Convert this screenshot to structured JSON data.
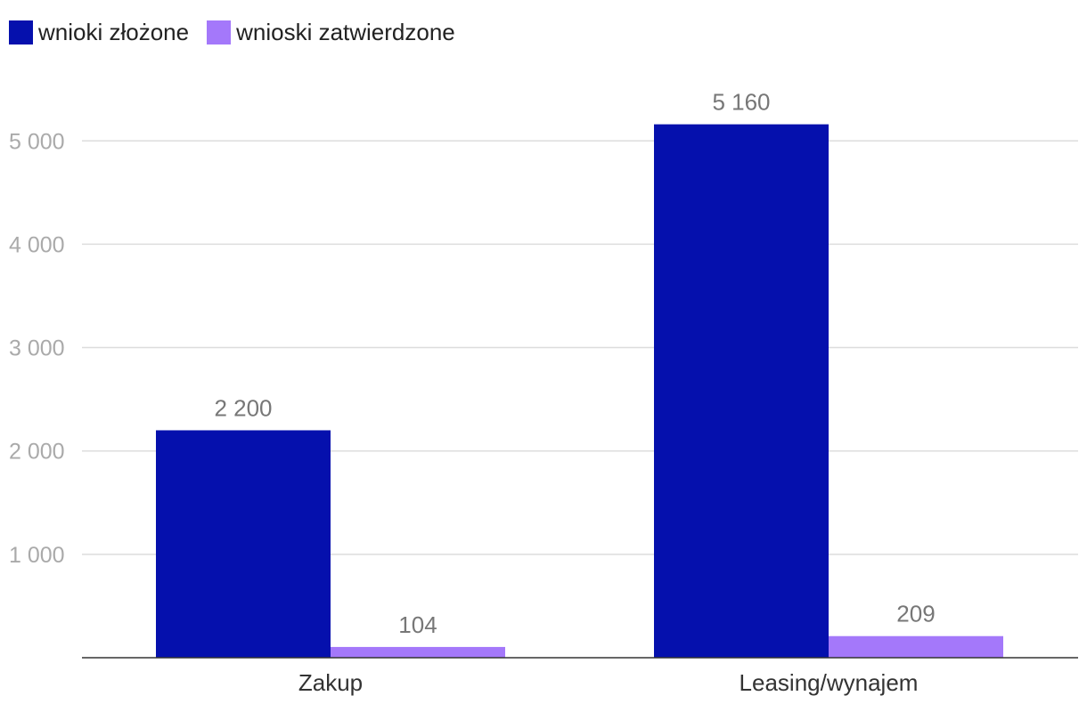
{
  "chart_data": {
    "type": "bar",
    "categories": [
      "Zakup",
      "Leasing/wynajem"
    ],
    "series": [
      {
        "name": "wnioki złożone",
        "color": "#0510AD",
        "values": [
          2200,
          5160
        ],
        "labels": [
          "2 200",
          "5 160"
        ]
      },
      {
        "name": "wnioski zatwierdzone",
        "color": "#A478FA",
        "values": [
          104,
          209
        ],
        "labels": [
          "104",
          "209"
        ]
      }
    ],
    "yticks": [
      {
        "value": 1000,
        "label": "1 000"
      },
      {
        "value": 2000,
        "label": "2 000"
      },
      {
        "value": 3000,
        "label": "3 000"
      },
      {
        "value": 4000,
        "label": "4 000"
      },
      {
        "value": 5000,
        "label": "5 000"
      }
    ],
    "ylim": [
      0,
      5500
    ],
    "grid": true,
    "legend_position": "top-left",
    "title": "",
    "xlabel": "",
    "ylabel": ""
  }
}
